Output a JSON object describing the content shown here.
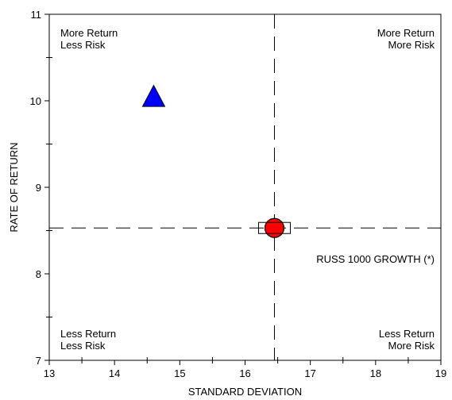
{
  "chart_data": {
    "type": "scatter",
    "title": "",
    "xlabel": "STANDARD DEVIATION",
    "ylabel": "RATE OF RETURN",
    "xlim": [
      13,
      19
    ],
    "ylim": [
      7,
      11
    ],
    "x_ticks": [
      "13",
      "14",
      "15",
      "16",
      "17",
      "18",
      "19"
    ],
    "y_ticks": [
      "7",
      "8",
      "9",
      "10",
      "11"
    ],
    "grid": false,
    "reference_lines": {
      "x": 16.45,
      "y": 8.53
    },
    "quadrant_labels": {
      "top_left": [
        "More Return",
        "Less Risk"
      ],
      "top_right": [
        "More Return",
        "More Risk"
      ],
      "bottom_left": [
        "Less Return",
        "Less Risk"
      ],
      "bottom_right": [
        "Less Return",
        "More Risk"
      ]
    },
    "points": [
      {
        "x": 14.6,
        "y": 10.05,
        "marker": "triangle",
        "color": "#0000ff",
        "label": ""
      },
      {
        "x": 16.45,
        "y": 8.53,
        "marker": "circle",
        "color": "#ff0000",
        "label": ""
      },
      {
        "x": 16.45,
        "y": 8.53,
        "marker": "square",
        "color": "#ffffff",
        "label": "RUSS 1000 GROWTH (*)"
      }
    ]
  }
}
